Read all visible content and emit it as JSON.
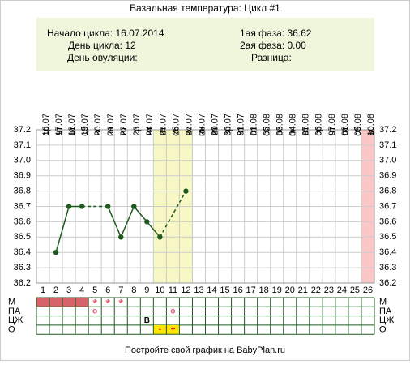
{
  "chart_data": {
    "type": "line",
    "title": "Базальная температура: Цикл #1",
    "info_left": [
      {
        "label": "Начало цикла:",
        "value": "16.07.2014"
      },
      {
        "label": "День цикла:",
        "value": "12"
      },
      {
        "label": "День овуляции:"
      }
    ],
    "info_right": [
      {
        "label": "1ая фаза:",
        "value": "36.62"
      },
      {
        "label": "2ая фаза:",
        "value": "0.00"
      },
      {
        "label": "Разница:"
      }
    ],
    "dates": [
      "16.07",
      "17.07",
      "18.07",
      "19.07",
      "20.07",
      "21.07",
      "22.07",
      "23.07",
      "24.07",
      "25.07",
      "26.07",
      "27.07",
      "28.07",
      "29.07",
      "30.07",
      "31.07",
      "01.08",
      "02.08",
      "03.08",
      "04.08",
      "05.08",
      "06.08",
      "07.08",
      "08.08",
      "09.08",
      "10.08"
    ],
    "weekdays": [
      "ср",
      "чт",
      "пт",
      "сб",
      "вс",
      "пн",
      "вт",
      "ср",
      "чт",
      "пт",
      "сб",
      "вс",
      "пн",
      "вт",
      "ср",
      "чт",
      "пт",
      "сб",
      "вс",
      "пн",
      "вт",
      "ср",
      "чт",
      "пт",
      "сб",
      "вс"
    ],
    "categories": [
      1,
      2,
      3,
      4,
      5,
      6,
      7,
      8,
      9,
      10,
      11,
      12,
      13,
      14,
      15,
      16,
      17,
      18,
      19,
      20,
      21,
      22,
      23,
      24,
      25,
      26
    ],
    "series": [
      {
        "color": "#1e5a1e",
        "values": [
          null,
          36.4,
          36.7,
          36.7,
          null,
          36.7,
          36.5,
          36.7,
          36.6,
          36.5,
          null,
          36.8,
          null,
          null,
          null,
          null,
          null,
          null,
          null,
          null,
          null,
          null,
          null,
          null,
          null,
          null
        ]
      }
    ],
    "ylim": [
      36.2,
      37.2
    ],
    "yticks": [
      36.2,
      36.3,
      36.4,
      36.5,
      36.6,
      36.7,
      36.8,
      36.9,
      {
        "value": 37,
        "label": "37.0"
      },
      37.1,
      37.2
    ],
    "grid": true,
    "column_highlights": [
      {
        "days": [
          10,
          11,
          12
        ],
        "color": "#f8f8c4"
      },
      {
        "days": [
          26
        ],
        "color": "#fbc6c6"
      }
    ],
    "rows": [
      {
        "label": "М",
        "shaded_days": [
          1,
          2,
          3,
          4
        ],
        "shade_color": "#d6636a",
        "entries": [
          {
            "day": 5,
            "text": "*"
          },
          {
            "day": 6,
            "text": "*"
          },
          {
            "day": 7,
            "text": "*"
          }
        ],
        "text_color": "#e0606a"
      },
      {
        "label": "ПА",
        "entries": [
          {
            "day": 5,
            "text": "o"
          },
          {
            "day": 11,
            "text": "o"
          }
        ],
        "text_color": "#e0606a"
      },
      {
        "label": "ЦЖ",
        "entries": [
          {
            "day": 9,
            "text": "В"
          }
        ],
        "text_color": "#000000"
      },
      {
        "label": "О",
        "entries": [
          {
            "day": 10,
            "text": "-",
            "bg": "#ffe600"
          },
          {
            "day": 11,
            "text": "+",
            "bg": "#ffe600"
          }
        ],
        "text_color": "#e02020"
      }
    ],
    "footer": "Постройте свой график на BabyPlan.ru"
  }
}
